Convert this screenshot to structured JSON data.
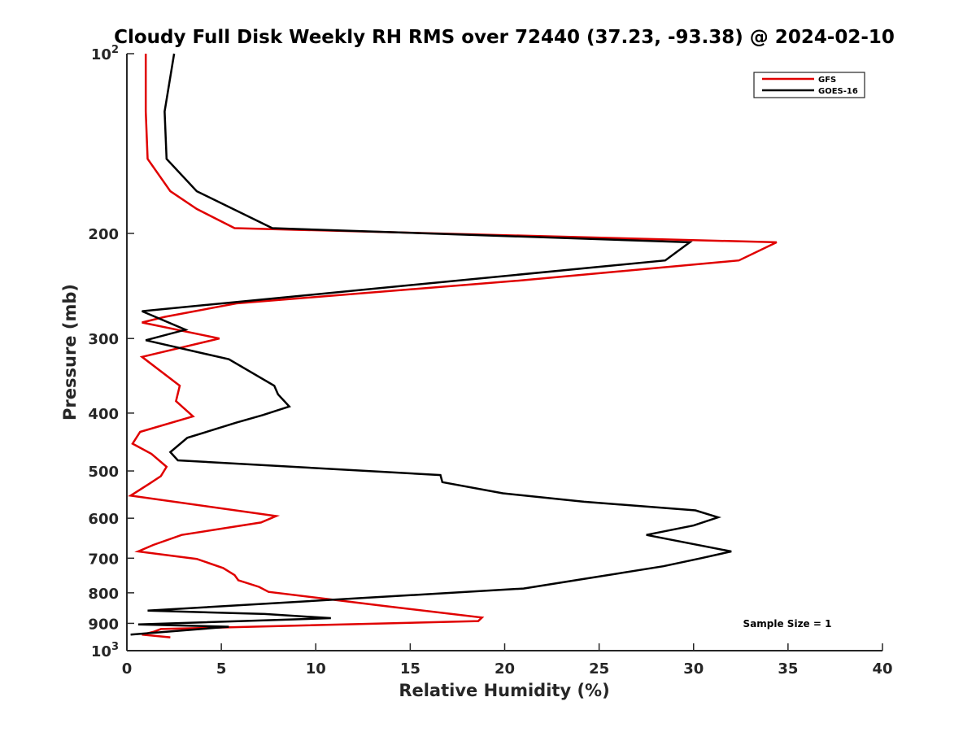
{
  "chart_data": {
    "type": "line",
    "title": "Cloudy Full Disk Weekly RH RMS over 72440 (37.23, -93.38) @ 2024-02-10",
    "xlabel": "Relative Humidity (%)",
    "ylabel": "Pressure (mb)",
    "xlim": [
      0,
      40
    ],
    "ylim": [
      100,
      1000
    ],
    "y_scale": "log",
    "y_reversed": true,
    "x_ticks": [
      0,
      5,
      10,
      15,
      20,
      25,
      30,
      35,
      40
    ],
    "y_ticks": [
      {
        "value": 100,
        "label": "10",
        "sup": "2"
      },
      {
        "value": 200,
        "label": "200"
      },
      {
        "value": 300,
        "label": "300"
      },
      {
        "value": 400,
        "label": "400"
      },
      {
        "value": 500,
        "label": "500"
      },
      {
        "value": 600,
        "label": "600"
      },
      {
        "value": 700,
        "label": "700"
      },
      {
        "value": 800,
        "label": "800"
      },
      {
        "value": 900,
        "label": "900"
      },
      {
        "value": 1000,
        "label": "10",
        "sup": "3"
      }
    ],
    "grid": false,
    "legend_position": "top-right",
    "annotation": "Sample Size = 1",
    "series": [
      {
        "name": "GFS",
        "color": "#e00000",
        "points": [
          [
            1.0,
            100
          ],
          [
            1.0,
            125
          ],
          [
            1.1,
            150
          ],
          [
            2.3,
            170
          ],
          [
            3.7,
            182
          ],
          [
            5.7,
            196
          ],
          [
            34.4,
            207
          ],
          [
            32.4,
            222
          ],
          [
            20.7,
            240
          ],
          [
            5.8,
            262
          ],
          [
            2.0,
            276
          ],
          [
            0.8,
            282
          ],
          [
            4.9,
            300
          ],
          [
            0.8,
            322
          ],
          [
            2.8,
            360
          ],
          [
            2.6,
            382
          ],
          [
            3.5,
            405
          ],
          [
            0.7,
            430
          ],
          [
            0.3,
            450
          ],
          [
            1.3,
            468
          ],
          [
            2.1,
            492
          ],
          [
            1.8,
            510
          ],
          [
            1.2,
            525
          ],
          [
            0.2,
            550
          ],
          [
            7.9,
            595
          ],
          [
            7.1,
            610
          ],
          [
            2.9,
            640
          ],
          [
            1.4,
            665
          ],
          [
            0.6,
            682
          ],
          [
            3.7,
            702
          ],
          [
            5.1,
            727
          ],
          [
            5.7,
            747
          ],
          [
            5.9,
            762
          ],
          [
            7.0,
            782
          ],
          [
            7.5,
            797
          ],
          [
            13.7,
            842
          ],
          [
            18.8,
            880
          ],
          [
            18.6,
            892
          ],
          [
            1.8,
            920
          ],
          [
            1.4,
            930
          ],
          [
            0.8,
            940
          ],
          [
            2.3,
            950
          ]
        ]
      },
      {
        "name": "GOES-16",
        "color": "#000000",
        "points": [
          [
            2.5,
            100
          ],
          [
            2.0,
            125
          ],
          [
            2.1,
            150
          ],
          [
            3.7,
            170
          ],
          [
            7.7,
            196
          ],
          [
            29.8,
            207
          ],
          [
            28.5,
            222
          ],
          [
            0.8,
            270
          ],
          [
            3.1,
            290
          ],
          [
            1.0,
            302
          ],
          [
            5.4,
            325
          ],
          [
            7.8,
            360
          ],
          [
            8.0,
            372
          ],
          [
            8.6,
            390
          ],
          [
            7.2,
            403
          ],
          [
            5.8,
            415
          ],
          [
            3.2,
            440
          ],
          [
            2.3,
            465
          ],
          [
            2.7,
            480
          ],
          [
            16.6,
            508
          ],
          [
            16.7,
            522
          ],
          [
            19.9,
            545
          ],
          [
            24.2,
            563
          ],
          [
            30.1,
            582
          ],
          [
            31.3,
            598
          ],
          [
            30.0,
            617
          ],
          [
            27.5,
            640
          ],
          [
            32.0,
            682
          ],
          [
            30.4,
            700
          ],
          [
            28.4,
            722
          ],
          [
            24.0,
            760
          ],
          [
            21.0,
            787
          ],
          [
            1.1,
            857
          ],
          [
            7.3,
            868
          ],
          [
            10.8,
            882
          ],
          [
            0.6,
            904
          ],
          [
            5.4,
            912
          ],
          [
            0.2,
            940
          ]
        ]
      }
    ]
  }
}
